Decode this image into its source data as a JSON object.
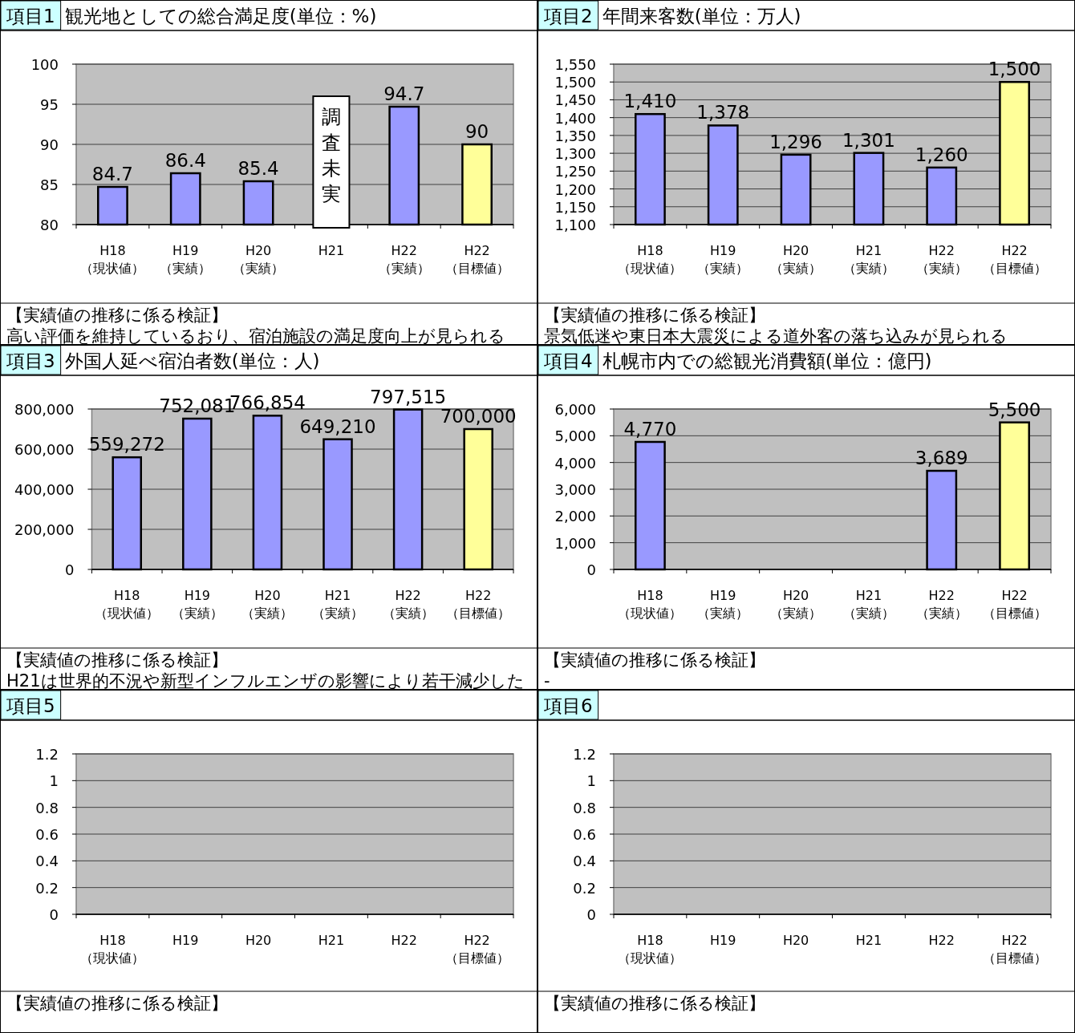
{
  "chart_data": [
    {
      "type": "bar",
      "title": "項目1",
      "subtitle": "観光地としての総合満足度(単位：%)",
      "categories": [
        "H18\n（現状値）",
        "H19\n（実績）",
        "H20\n（実績）",
        "H21",
        "H22\n（実績）",
        "H22\n（目標値）"
      ],
      "values": [
        84.7,
        86.4,
        85.4,
        null,
        94.7,
        90
      ],
      "colors": [
        "#9999ff",
        "#9999ff",
        "#9999ff",
        "#ffffff",
        "#9999ff",
        "#ffff99"
      ],
      "ylim": [
        80,
        100
      ],
      "yticks": [
        80,
        85,
        90,
        95,
        100
      ],
      "grid": "y",
      "value_labels": [
        "84.7",
        "86.4",
        "85.4",
        "調査未実",
        "94.7",
        "90"
      ],
      "annotations": [
        "【実績値の推移に係る検証】",
        "高い評価を維持しているおり、宿泊施設の満足度向上が見られる"
      ]
    },
    {
      "type": "bar",
      "title": "項目2",
      "subtitle": "年間来客数(単位：万人)",
      "categories": [
        "H18\n（現状値）",
        "H19\n（実績）",
        "H20\n（実績）",
        "H21\n（実績）",
        "H22\n（実績）",
        "H22\n（目標値）"
      ],
      "values": [
        1410,
        1378,
        1296,
        1301,
        1260,
        1500
      ],
      "colors": [
        "#9999ff",
        "#9999ff",
        "#9999ff",
        "#9999ff",
        "#9999ff",
        "#ffff99"
      ],
      "ylim": [
        1100,
        1550
      ],
      "yticks": [
        {
          "value": 1100,
          "label": "1,100"
        },
        {
          "value": 1150,
          "label": "1,150"
        },
        {
          "value": 1200,
          "label": "1,200"
        },
        {
          "value": 1250,
          "label": "1,250"
        },
        {
          "value": 1300,
          "label": "1,300"
        },
        {
          "value": 1350,
          "label": "1,350"
        },
        {
          "value": 1400,
          "label": "1,400"
        },
        {
          "value": 1450,
          "label": "1,450"
        },
        {
          "value": 1500,
          "label": "1,500"
        },
        {
          "value": 1550,
          "label": "1,550"
        }
      ],
      "grid": "y",
      "value_labels": [
        "1,410",
        "1,378",
        "1,296",
        "1,301",
        "1,260",
        "1,500"
      ],
      "annotations": [
        "【実績値の推移に係る検証】",
        "景気低迷や東日本大震災による道外客の落ち込みが見られる"
      ]
    },
    {
      "type": "bar",
      "title": "項目3",
      "subtitle": "外国人延べ宿泊者数(単位：人)",
      "categories": [
        "H18\n（現状値）",
        "H19\n（実績）",
        "H20\n（実績）",
        "H21\n（実績）",
        "H22\n（実績）",
        "H22\n（目標値）"
      ],
      "values": [
        559272,
        752081,
        766854,
        649210,
        797515,
        700000
      ],
      "colors": [
        "#9999ff",
        "#9999ff",
        "#9999ff",
        "#9999ff",
        "#9999ff",
        "#ffff99"
      ],
      "ylim": [
        0,
        800000
      ],
      "yticks": [
        0,
        {
          "value": 200000,
          "label": "200,000"
        },
        {
          "value": 400000,
          "label": "400,000"
        },
        {
          "value": 600000,
          "label": "600,000"
        },
        {
          "value": 800000,
          "label": "800,000"
        }
      ],
      "grid": "y",
      "value_labels": [
        "559,272",
        "752,081",
        "766,854",
        "649,210",
        "797,515",
        "700,000"
      ],
      "annotations": [
        "【実績値の推移に係る検証】",
        "H21は世界的不況や新型インフルエンザの影響により若干減少した"
      ]
    },
    {
      "type": "bar",
      "title": "項目4",
      "subtitle": "札幌市内での総観光消費額(単位：億円)",
      "categories": [
        "H18\n（現状値）",
        "H19\n（実績）",
        "H20\n（実績）",
        "H21\n（実績）",
        "H22\n（実績）",
        "H22\n（目標値）"
      ],
      "values": [
        4770,
        null,
        null,
        null,
        3689,
        5500
      ],
      "colors": [
        "#9999ff",
        "#9999ff",
        "#9999ff",
        "#9999ff",
        "#9999ff",
        "#ffff99"
      ],
      "ylim": [
        0,
        6000
      ],
      "yticks": [
        0,
        {
          "value": 1000,
          "label": "1,000"
        },
        {
          "value": 2000,
          "label": "2,000"
        },
        {
          "value": 3000,
          "label": "3,000"
        },
        {
          "value": 4000,
          "label": "4,000"
        },
        {
          "value": 5000,
          "label": "5,000"
        },
        {
          "value": 6000,
          "label": "6,000"
        }
      ],
      "grid": "y",
      "value_labels": [
        "4,770",
        null,
        null,
        null,
        "3,689",
        "5,500"
      ],
      "annotations": [
        "【実績値の推移に係る検証】",
        "-"
      ]
    },
    {
      "type": "bar",
      "title": "項目5",
      "categories": [
        "H18\n（現状値）",
        "H19",
        "H20",
        "H21",
        "H22",
        "H22\n（目標値）"
      ],
      "values": [
        null,
        null,
        null,
        null,
        null,
        null
      ],
      "ylim": [
        0,
        1.2
      ],
      "yticks": [
        0,
        0.2,
        0.4,
        0.6,
        0.8,
        1,
        1.2
      ],
      "grid": "y",
      "annotations": [
        "【実績値の推移に係る検証】"
      ]
    },
    {
      "type": "bar",
      "title": "項目6",
      "categories": [
        "H18\n（現状値）",
        "H19",
        "H20",
        "H21",
        "H22",
        "H22\n（目標値）"
      ],
      "values": [
        null,
        null,
        null,
        null,
        null,
        null
      ],
      "ylim": [
        0,
        1.2
      ],
      "yticks": [
        0,
        0.2,
        0.4,
        0.6,
        0.8,
        1,
        1.2
      ],
      "grid": "y",
      "annotations": [
        "【実績値の推移に係る検証】"
      ]
    }
  ]
}
